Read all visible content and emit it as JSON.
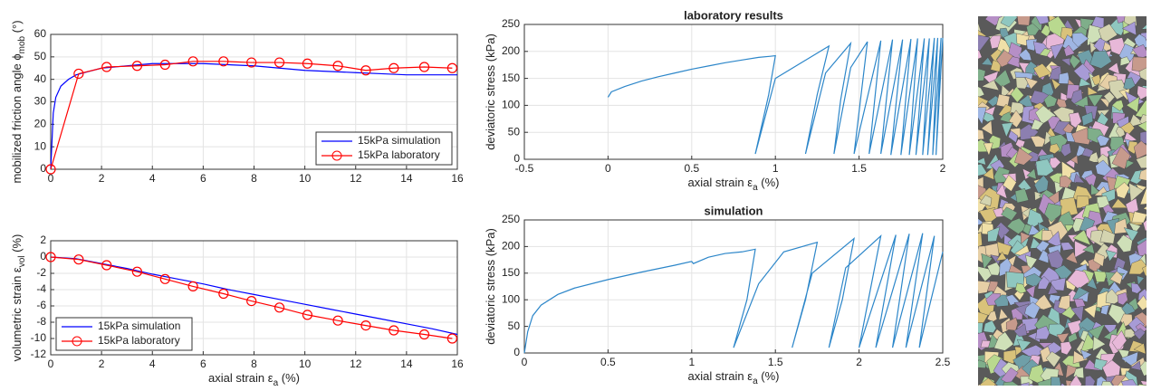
{
  "chart_data": [
    {
      "type": "line",
      "xlim": [
        0,
        16
      ],
      "xticks": [
        0,
        2,
        4,
        6,
        8,
        10,
        12,
        14,
        16
      ],
      "ylim": [
        0,
        60
      ],
      "yticks": [
        0,
        10,
        20,
        30,
        40,
        50,
        60
      ],
      "grid": true,
      "legend": "lower right",
      "ylabel": [
        "mobilized friction angle ϕ",
        "mob",
        " (°)"
      ],
      "series": [
        {
          "name": "15kPa simulation",
          "color": "#0000ff",
          "marker": false,
          "x": [
            0,
            0.1,
            0.2,
            0.4,
            0.7,
            1,
            1.5,
            2,
            3,
            4,
            5,
            6,
            7,
            8,
            9,
            10,
            11,
            12,
            13,
            14,
            15,
            16
          ],
          "values": [
            0,
            25,
            32,
            37,
            40,
            42,
            43.5,
            45,
            46,
            47,
            47,
            47,
            46.5,
            46,
            45,
            44,
            43.5,
            43,
            42.5,
            42,
            42,
            42
          ]
        },
        {
          "name": "15kPa laboratory",
          "color": "#ff0000",
          "marker": true,
          "x": [
            0,
            1.1,
            2.2,
            3.4,
            4.5,
            5.6,
            6.8,
            7.9,
            9,
            10.1,
            11.3,
            12.4,
            13.5,
            14.7,
            15.8
          ],
          "values": [
            0,
            42.5,
            45.5,
            46,
            46.5,
            48,
            48,
            47.5,
            47.5,
            47,
            46,
            44,
            45,
            45.5,
            45
          ]
        }
      ]
    },
    {
      "type": "line",
      "xlim": [
        0,
        16
      ],
      "xticks": [
        0,
        2,
        4,
        6,
        8,
        10,
        12,
        14,
        16
      ],
      "ylim": [
        -12,
        2
      ],
      "yticks": [
        -12,
        -10,
        -8,
        -6,
        -4,
        -2,
        0,
        2
      ],
      "grid": true,
      "legend": "lower left",
      "xlabel": [
        "axial strain ε",
        "a",
        " (%)"
      ],
      "ylabel": [
        "volumetric strain ε",
        "vol",
        " (%)"
      ],
      "series": [
        {
          "name": "15kPa simulation",
          "color": "#0000ff",
          "marker": false,
          "x": [
            0,
            1,
            2,
            3,
            4,
            5,
            6,
            7,
            8,
            9,
            10,
            11,
            12,
            13,
            14,
            15,
            16
          ],
          "values": [
            0,
            -0.2,
            -0.8,
            -1.4,
            -2.1,
            -2.7,
            -3.3,
            -4,
            -4.6,
            -5.2,
            -5.8,
            -6.4,
            -7,
            -7.6,
            -8.2,
            -8.8,
            -9.5
          ]
        },
        {
          "name": "15kPa laboratory",
          "color": "#ff0000",
          "marker": true,
          "x": [
            0,
            1.1,
            2.2,
            3.4,
            4.5,
            5.6,
            6.8,
            7.9,
            9,
            10.1,
            11.3,
            12.4,
            13.5,
            14.7,
            15.8
          ],
          "values": [
            0,
            -0.3,
            -1,
            -1.8,
            -2.7,
            -3.6,
            -4.5,
            -5.4,
            -6.2,
            -7.1,
            -7.8,
            -8.4,
            -9,
            -9.5,
            -10
          ]
        }
      ]
    },
    {
      "type": "line",
      "title": "laboratory results",
      "xlim": [
        -0.5,
        2
      ],
      "xticks": [
        -0.5,
        0,
        0.5,
        1,
        1.5,
        2
      ],
      "ylim": [
        0,
        250
      ],
      "yticks": [
        0,
        50,
        100,
        150,
        200,
        250
      ],
      "grid": true,
      "xlabel": [
        "axial strain ε",
        "a",
        " (%)"
      ],
      "ylabel": [
        "deviatoric stress (kPa)"
      ],
      "series": [
        {
          "color": "#2c86c9",
          "marker": false,
          "x": [
            0,
            0.02,
            0.1,
            0.2,
            0.3,
            0.4,
            0.5,
            0.6,
            0.7,
            0.8,
            0.9,
            0.97,
            1.0,
            0.96,
            0.88,
            1.0,
            1.32,
            1.25,
            1.18,
            1.3,
            1.45,
            1.39,
            1.35,
            1.45,
            1.55,
            1.47,
            1.63,
            1.56,
            1.7,
            1.63,
            1.76,
            1.69,
            1.81,
            1.75,
            1.85,
            1.8,
            1.89,
            1.84,
            1.92,
            1.88,
            1.95,
            1.91,
            1.97,
            1.94,
            1.99,
            1.96,
            2.0
          ],
          "values": [
            115,
            125,
            135,
            145,
            153,
            160,
            167,
            173,
            179,
            184,
            189,
            191,
            192,
            120,
            10,
            150,
            210,
            120,
            10,
            160,
            215,
            110,
            10,
            170,
            218,
            10,
            220,
            10,
            222,
            10,
            222,
            8,
            223,
            8,
            224,
            8,
            224,
            8,
            224,
            8,
            225,
            8,
            225,
            8,
            225,
            8,
            225
          ]
        }
      ]
    },
    {
      "type": "line",
      "title": "simulation",
      "xlim": [
        0,
        2.5
      ],
      "xticks": [
        0,
        0.5,
        1,
        1.5,
        2,
        2.5
      ],
      "ylim": [
        0,
        250
      ],
      "yticks": [
        0,
        50,
        100,
        150,
        200,
        250
      ],
      "grid": true,
      "xlabel": [
        "axial strain ε",
        "a",
        " (%)"
      ],
      "ylabel": [
        "deviatoric stress (kPa)"
      ],
      "series": [
        {
          "color": "#2c86c9",
          "marker": false,
          "x": [
            0,
            0.02,
            0.05,
            0.1,
            0.2,
            0.3,
            0.5,
            0.7,
            0.9,
            1.0,
            1.01,
            1.1,
            1.2,
            1.3,
            1.38,
            1.33,
            1.25,
            1.4,
            1.55,
            1.75,
            1.68,
            1.6,
            1.72,
            1.97,
            1.9,
            1.82,
            1.92,
            2.13,
            2.0,
            2.22,
            2.1,
            2.3,
            2.2,
            2.38,
            2.28,
            2.45,
            2.36,
            2.5
          ],
          "values": [
            0,
            40,
            70,
            90,
            110,
            122,
            138,
            152,
            165,
            172,
            168,
            180,
            187,
            190,
            195,
            100,
            10,
            130,
            190,
            208,
            100,
            10,
            150,
            215,
            100,
            10,
            160,
            220,
            10,
            222,
            10,
            224,
            10,
            225,
            10,
            220,
            10,
            190
          ]
        }
      ]
    }
  ]
}
